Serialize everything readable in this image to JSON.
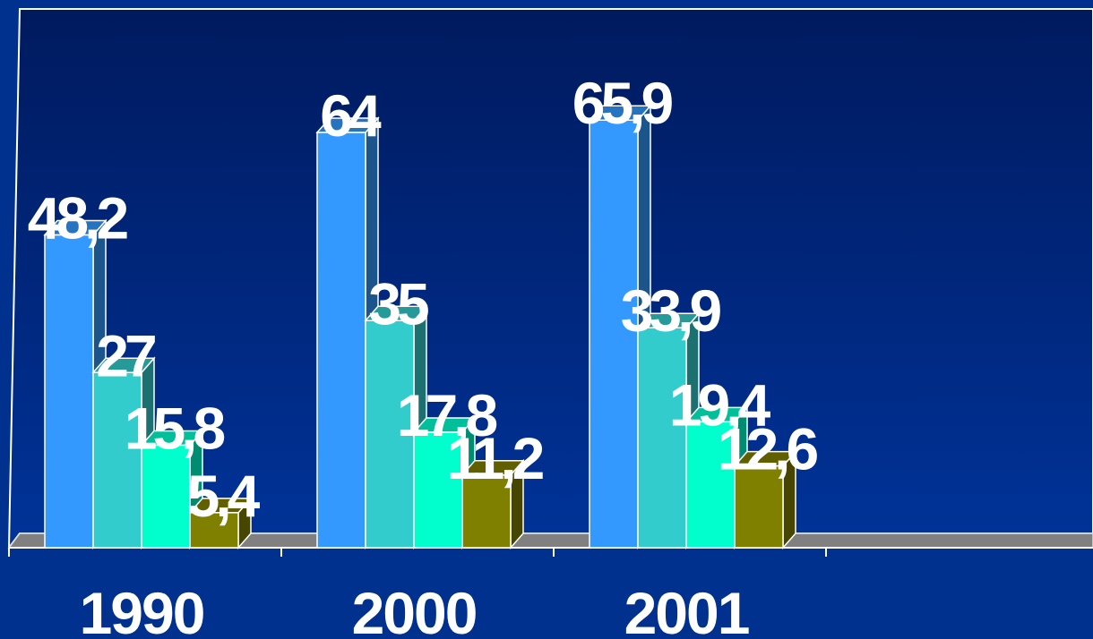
{
  "chart_data": {
    "type": "bar",
    "categories": [
      "1990",
      "2000",
      "2001",
      ""
    ],
    "series": [
      {
        "values": [
          48.2,
          64,
          65.9,
          null
        ],
        "labels": [
          "48,2",
          "64",
          "65,9",
          ""
        ],
        "color": "#3399ff"
      },
      {
        "values": [
          27,
          35,
          33.9,
          null
        ],
        "labels": [
          "27",
          "35",
          "33,9",
          ""
        ],
        "color": "#33cccc"
      },
      {
        "values": [
          15.8,
          17.8,
          19.4,
          null
        ],
        "labels": [
          "15,8",
          "17,8",
          "19,4",
          ""
        ],
        "color": "#00ffcc"
      },
      {
        "values": [
          5.4,
          11.2,
          12.6,
          null
        ],
        "labels": [
          "5,4",
          "11,2",
          "12,6",
          ""
        ],
        "color": "#808000"
      }
    ],
    "ylim": [
      0,
      80
    ],
    "grid": false,
    "legend": "none",
    "style": "3d-clustered-column"
  },
  "colors": {
    "background": "#00318f",
    "plot_area_top": "#001a5e",
    "plot_area_bottom": "#003399",
    "floor": "#808080",
    "text": "#ffffff"
  }
}
